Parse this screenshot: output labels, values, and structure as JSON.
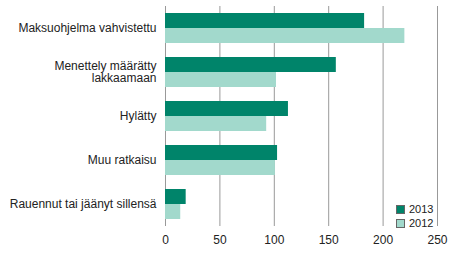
{
  "chart_data": {
    "type": "bar",
    "orientation": "horizontal",
    "categories": [
      "Maksuohjelma vahvistettu",
      "Menettely määrätty\nlakkaamaan",
      "Hylätty",
      "Muu ratkaisu",
      "Rauennut tai jäänyt sillensä"
    ],
    "series": [
      {
        "name": "2013",
        "color": "#00846a",
        "values": [
          183,
          157,
          113,
          103,
          19
        ]
      },
      {
        "name": "2012",
        "color": "#a2d9cc",
        "values": [
          220,
          102,
          93,
          101,
          14
        ]
      }
    ],
    "xlim": [
      0,
      250
    ],
    "xticks": [
      0,
      50,
      100,
      150,
      200,
      250
    ],
    "grid": true,
    "legend": "lower right"
  }
}
